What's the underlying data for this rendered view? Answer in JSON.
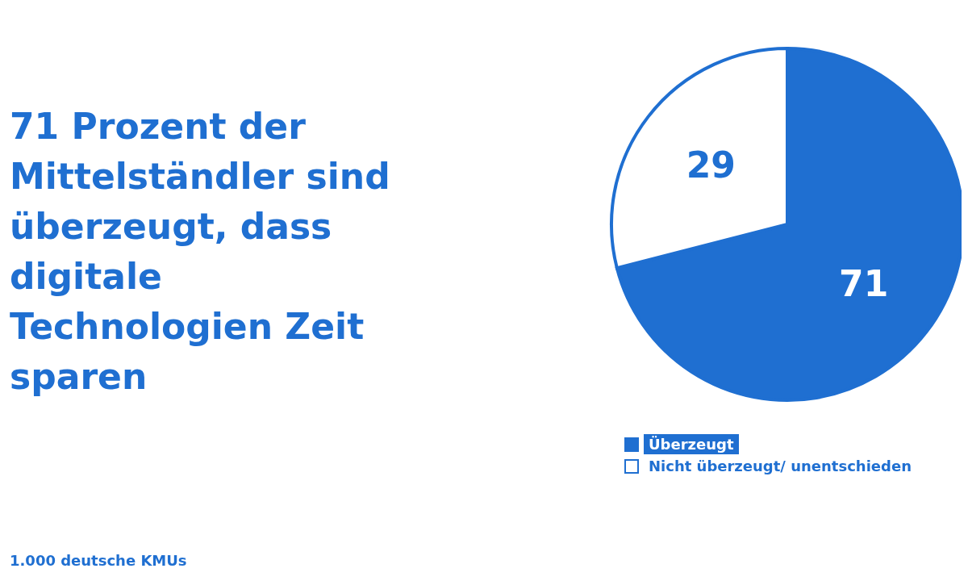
{
  "chart_data": {
    "type": "pie",
    "title": "71 Prozent der Mittelständler sind überzeugt, dass digitale Technologien Zeit sparen",
    "categories": [
      "Überzeugt",
      "Nicht überzeugt/ unentschieden"
    ],
    "values": [
      71,
      29
    ],
    "colors": [
      "#1f6fd1",
      "#ffffff"
    ],
    "data_labels": true,
    "legend": "bottom",
    "annotations": [
      "1.000 deutsche KMUs"
    ]
  }
}
